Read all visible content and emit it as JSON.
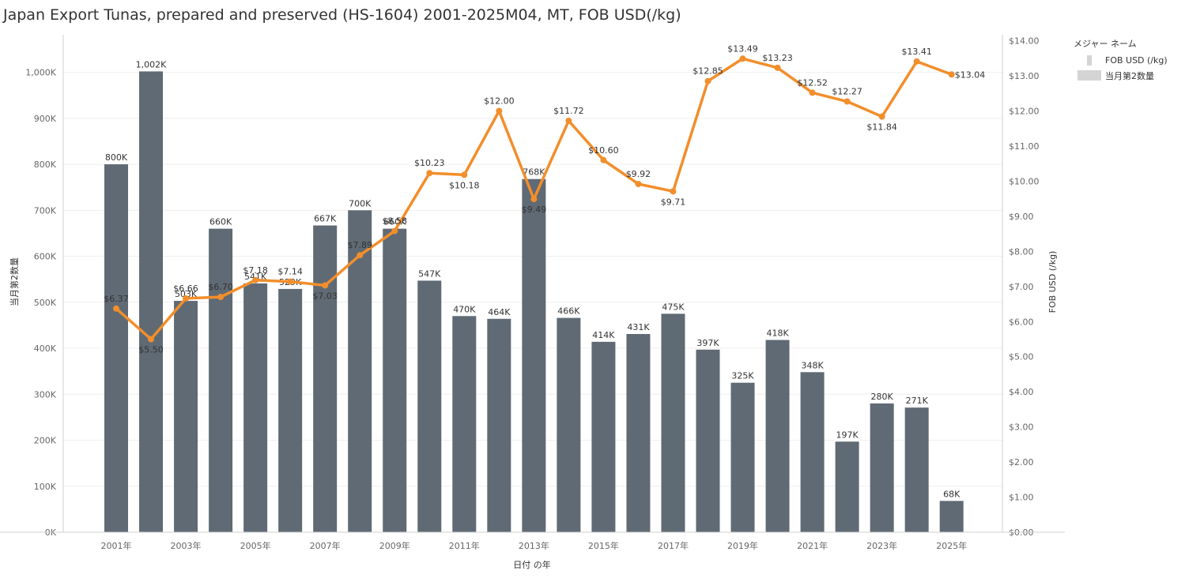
{
  "chart_data": {
    "type": "bar",
    "title": "Japan Export Tunas, prepared and preserved (HS-1604) 2001-2025M04, MT, FOB USD(/kg)",
    "xlabel": "日付 の年",
    "ylabel": "当月第2数量",
    "y2label": "FOB USD (/kg)",
    "ylim": [
      0,
      1050000
    ],
    "y2lim": [
      0,
      14
    ],
    "yticks": [
      "0K",
      "100K",
      "200K",
      "300K",
      "400K",
      "500K",
      "600K",
      "700K",
      "800K",
      "900K",
      "1,000K"
    ],
    "y2ticks": [
      "$0.00",
      "$1.00",
      "$2.00",
      "$3.00",
      "$4.00",
      "$5.00",
      "$6.00",
      "$7.00",
      "$8.00",
      "$9.00",
      "$10.00",
      "$11.00",
      "$12.00",
      "$13.00",
      "$14.00"
    ],
    "categories": [
      "2001",
      "2002",
      "2003",
      "2004",
      "2005",
      "2006",
      "2007",
      "2008",
      "2009",
      "2010",
      "2011",
      "2012",
      "2013",
      "2014",
      "2015",
      "2016",
      "2017",
      "2018",
      "2019",
      "2020",
      "2021",
      "2022",
      "2023",
      "2024",
      "2025"
    ],
    "xticks": [
      "2001年",
      "2003年",
      "2005年",
      "2007年",
      "2009年",
      "2011年",
      "2013年",
      "2015年",
      "2017年",
      "2019年",
      "2021年",
      "2023年",
      "2025年"
    ],
    "grid": true,
    "legend_position": "right",
    "series": [
      {
        "name": "当月第2数量",
        "type": "bar",
        "color": "#5f6a74",
        "values": [
          800000,
          1002000,
          503000,
          660000,
          541000,
          529000,
          667000,
          700000,
          660000,
          547000,
          470000,
          464000,
          768000,
          466000,
          414000,
          431000,
          475000,
          397000,
          325000,
          418000,
          348000,
          197000,
          280000,
          271000,
          68000
        ],
        "labels": [
          "800K",
          "1,002K",
          "503K",
          "660K",
          "541K",
          "529K",
          "667K",
          "700K",
          "660K",
          "547K",
          "470K",
          "464K",
          "768K",
          "466K",
          "414K",
          "431K",
          "475K",
          "397K",
          "325K",
          "418K",
          "348K",
          "197K",
          "280K",
          "271K",
          "68K"
        ]
      },
      {
        "name": "FOB USD (/kg)",
        "type": "line",
        "axis": "right",
        "color": "#f28e2b",
        "values": [
          6.37,
          5.5,
          6.66,
          6.7,
          7.18,
          7.14,
          7.03,
          7.89,
          8.58,
          10.23,
          10.18,
          12.0,
          9.49,
          11.72,
          10.6,
          9.92,
          9.71,
          12.85,
          13.49,
          13.23,
          12.52,
          12.27,
          11.84,
          13.41,
          13.04
        ],
        "labels": [
          "$6.37",
          "$5.50",
          "$6.66",
          "$6.70",
          "$7.18",
          "$7.14",
          "$7.03",
          "$7.89",
          "$8.58",
          "$10.23",
          "$10.18",
          "$12.00",
          "$9.49",
          "$11.72",
          "$10.60",
          "$9.92",
          "$9.71",
          "$12.85",
          "$13.49",
          "$13.23",
          "$12.52",
          "$12.27",
          "$11.84",
          "$13.41",
          "$13.04"
        ]
      }
    ]
  },
  "legend": {
    "title": "メジャー ネーム",
    "items": [
      {
        "label": "FOB USD (/kg)",
        "kind": "line"
      },
      {
        "label": "当月第2数量",
        "kind": "bar"
      }
    ]
  }
}
